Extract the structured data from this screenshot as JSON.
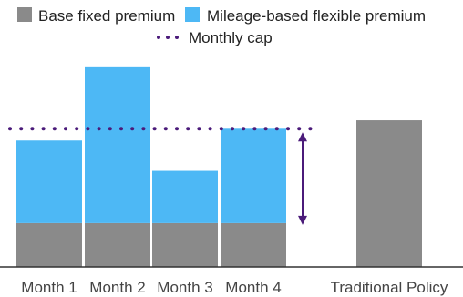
{
  "chart_data": {
    "type": "bar",
    "stacked": true,
    "title": "",
    "xlabel": "",
    "ylabel": "",
    "categories": [
      "Month 1",
      "Month 2",
      "Month 3",
      "Month 4",
      "Traditional Policy"
    ],
    "series": [
      {
        "name": "Base fixed premium",
        "color": "#8a8a8a",
        "values": [
          26,
          26,
          26,
          26,
          87
        ]
      },
      {
        "name": "Mileage-based flexible premium",
        "color": "#4db8f5",
        "values": [
          49,
          93,
          31,
          56,
          0
        ]
      }
    ],
    "reference_line": {
      "name": "Monthly cap",
      "value": 82,
      "color": "#4b1b7a",
      "style": "dotted"
    },
    "annotation_arrow": {
      "from": 82,
      "to": 26,
      "color": "#4b1b7a",
      "category_after": "Month 4"
    },
    "ylim": [
      0,
      125
    ],
    "grid": false,
    "legend_position": "top"
  }
}
